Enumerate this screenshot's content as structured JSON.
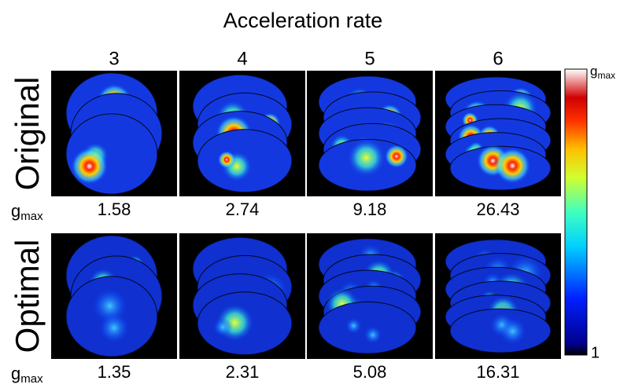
{
  "title": "Acceleration rate",
  "columns": [
    3,
    4,
    5,
    6
  ],
  "rows": [
    {
      "label": "Original",
      "gmax_values": [
        1.58,
        2.74,
        9.18,
        26.43
      ]
    },
    {
      "label": "Optimal",
      "gmax_values": [
        1.35,
        2.31,
        5.08,
        16.31
      ]
    }
  ],
  "gmax_label": {
    "main": "g",
    "sub": "max"
  },
  "colorbar": {
    "top": {
      "main": "g",
      "sub": "max"
    },
    "bottom": 1
  }
}
